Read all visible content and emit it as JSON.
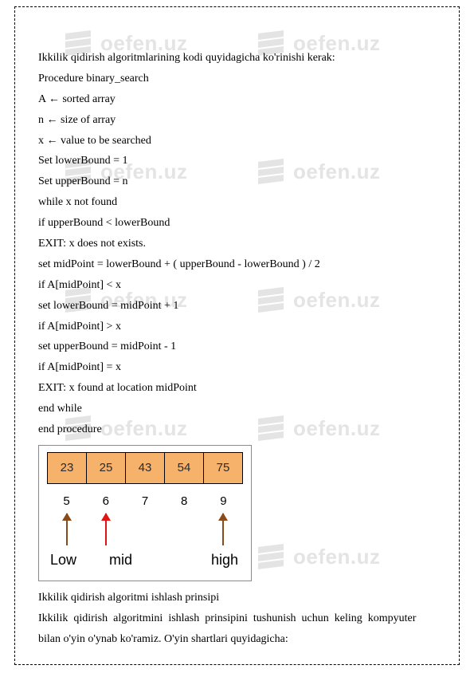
{
  "watermark": {
    "text": "oefen.uz",
    "color": "#e4e4e4"
  },
  "lines": {
    "l0": "Ikkilik qidirish algoritmlarining kodi quyidagicha ko'rinishi kerak:",
    "l1": "Procedure binary_search",
    "l2": "A ← sorted array",
    "l3": "n ← size of array",
    "l4": "x ← value to be searched",
    "l5": "Set lowerBound = 1",
    "l6": "Set upperBound = n",
    "l7": "while x not found",
    "l8": "if upperBound < lowerBound",
    "l9": "EXIT: x does not exists.",
    "l10": "set midPoint = lowerBound + ( upperBound - lowerBound ) / 2",
    "l11": "if A[midPoint] < x",
    "l12": "set lowerBound = midPoint + 1",
    "l13": "if A[midPoint] > x",
    "l14": "set upperBound = midPoint - 1",
    "l15": "if A[midPoint] = x",
    "l16": "EXIT: x found at location midPoint",
    "l17": "end while",
    "l18": "end procedure"
  },
  "diagram": {
    "cells": [
      "23",
      "25",
      "43",
      "54",
      "75"
    ],
    "cell_bg": "#f6b26b",
    "cell_border": "#000000",
    "indices": [
      "5",
      "6",
      "7",
      "8",
      "9"
    ],
    "index_font": 15,
    "arrows": [
      {
        "slot": 0,
        "color": "#8a4b1a"
      },
      {
        "slot": 1,
        "color": "#e11313"
      },
      {
        "slot": 4,
        "color": "#8a4b1a"
      }
    ],
    "labels": {
      "low": "Low",
      "mid": "mid",
      "high": "high"
    },
    "label_font": 18,
    "outer_border": "#8a8a8a",
    "bg": "#ffffff"
  },
  "para2": {
    "title": "Ikkilik qidirish algoritmi ishlash prinsipi",
    "body1": "Ikkilik  qidirish  algoritmini  ishlash  prinsipini  tushunish  uchun  keling  kompyuter",
    "body2": "bilan o'yin o'ynab ko'ramiz. O'yin shartlari quyidagicha:"
  }
}
